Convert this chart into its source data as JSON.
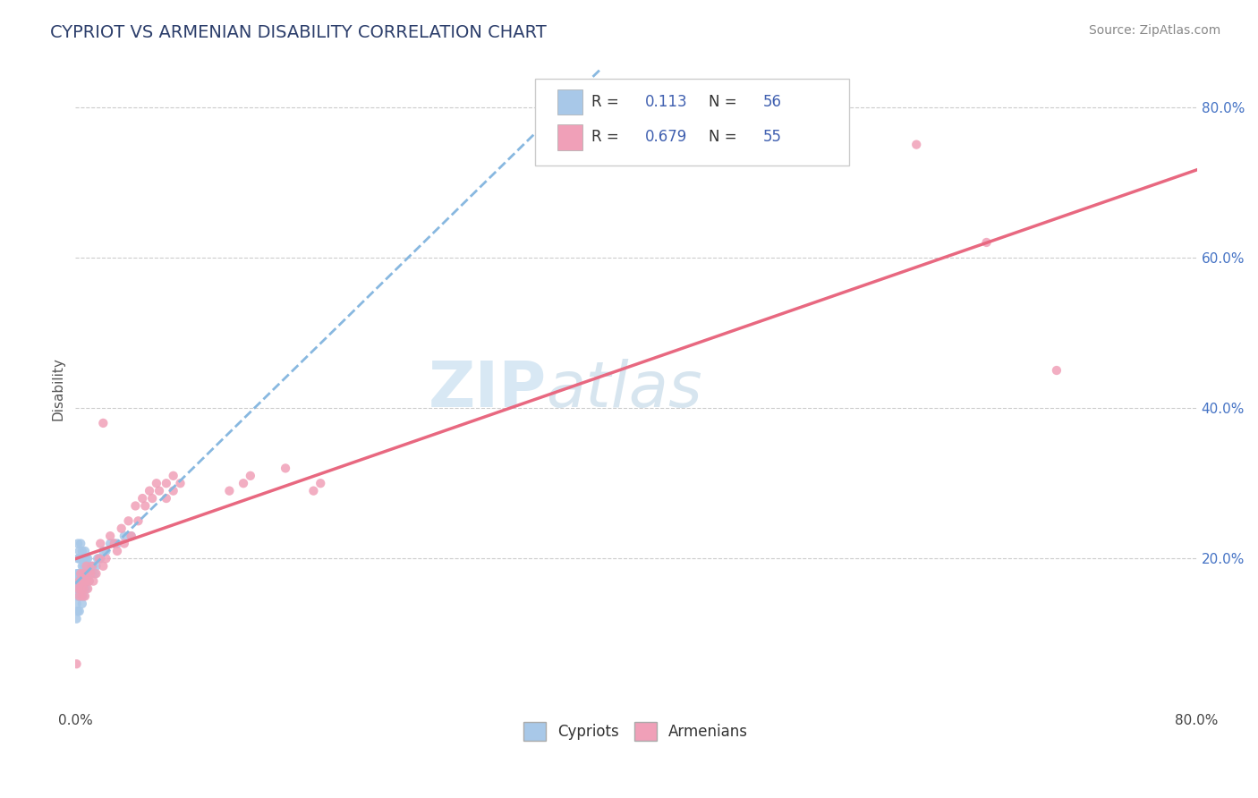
{
  "title": "CYPRIOT VS ARMENIAN DISABILITY CORRELATION CHART",
  "source": "Source: ZipAtlas.com",
  "ylabel_label": "Disability",
  "cypriot_R": 0.113,
  "cypriot_N": 56,
  "armenian_R": 0.679,
  "armenian_N": 55,
  "cypriot_color": "#a8c8e8",
  "armenian_color": "#f0a0b8",
  "cypriot_line_color": "#88b8e0",
  "armenian_line_color": "#e86880",
  "background_color": "#ffffff",
  "grid_color": "#cccccc",
  "title_color": "#2c3e6b",
  "legend_val_color": "#4060b0",
  "legend_label_cypriot": "Cypriots",
  "legend_label_armenian": "Armenians",
  "cypriot_x": [
    0.001,
    0.001,
    0.001,
    0.001,
    0.001,
    0.002,
    0.002,
    0.002,
    0.002,
    0.002,
    0.002,
    0.003,
    0.003,
    0.003,
    0.003,
    0.003,
    0.003,
    0.004,
    0.004,
    0.004,
    0.004,
    0.004,
    0.005,
    0.005,
    0.005,
    0.005,
    0.005,
    0.006,
    0.006,
    0.006,
    0.006,
    0.007,
    0.007,
    0.007,
    0.007,
    0.008,
    0.008,
    0.008,
    0.009,
    0.009,
    0.01,
    0.01,
    0.011,
    0.012,
    0.013,
    0.014,
    0.015,
    0.016,
    0.018,
    0.02,
    0.022,
    0.025,
    0.028,
    0.03,
    0.035,
    0.04
  ],
  "cypriot_y": [
    0.18,
    0.17,
    0.16,
    0.14,
    0.12,
    0.22,
    0.2,
    0.18,
    0.16,
    0.15,
    0.13,
    0.21,
    0.2,
    0.18,
    0.17,
    0.15,
    0.13,
    0.22,
    0.2,
    0.18,
    0.17,
    0.15,
    0.21,
    0.19,
    0.18,
    0.16,
    0.14,
    0.2,
    0.19,
    0.17,
    0.15,
    0.21,
    0.19,
    0.17,
    0.16,
    0.2,
    0.18,
    0.16,
    0.2,
    0.18,
    0.19,
    0.17,
    0.19,
    0.18,
    0.19,
    0.18,
    0.19,
    0.2,
    0.2,
    0.21,
    0.21,
    0.22,
    0.22,
    0.22,
    0.23,
    0.23
  ],
  "armenian_x": [
    0.001,
    0.002,
    0.003,
    0.003,
    0.004,
    0.004,
    0.005,
    0.005,
    0.006,
    0.006,
    0.007,
    0.007,
    0.008,
    0.008,
    0.009,
    0.009,
    0.01,
    0.011,
    0.012,
    0.013,
    0.015,
    0.017,
    0.018,
    0.02,
    0.022,
    0.025,
    0.028,
    0.03,
    0.033,
    0.035,
    0.038,
    0.04,
    0.043,
    0.045,
    0.048,
    0.05,
    0.053,
    0.055,
    0.058,
    0.06,
    0.065,
    0.065,
    0.07,
    0.07,
    0.075,
    0.11,
    0.12,
    0.125,
    0.15,
    0.17,
    0.175,
    0.02,
    0.6,
    0.65,
    0.7
  ],
  "armenian_y": [
    0.06,
    0.16,
    0.17,
    0.15,
    0.18,
    0.16,
    0.17,
    0.15,
    0.18,
    0.16,
    0.17,
    0.15,
    0.19,
    0.17,
    0.18,
    0.16,
    0.17,
    0.18,
    0.19,
    0.17,
    0.18,
    0.2,
    0.22,
    0.19,
    0.2,
    0.23,
    0.22,
    0.21,
    0.24,
    0.22,
    0.25,
    0.23,
    0.27,
    0.25,
    0.28,
    0.27,
    0.29,
    0.28,
    0.3,
    0.29,
    0.3,
    0.28,
    0.31,
    0.29,
    0.3,
    0.29,
    0.3,
    0.31,
    0.32,
    0.29,
    0.3,
    0.38,
    0.75,
    0.62,
    0.45
  ],
  "xlim": [
    0.0,
    0.8
  ],
  "ylim": [
    0.0,
    0.85
  ],
  "xtick_vals": [
    0.0,
    0.8
  ],
  "xtick_labels": [
    "0.0%",
    "80.0%"
  ],
  "ytick_vals": [
    0.2,
    0.4,
    0.6,
    0.8
  ],
  "ytick_labels_right": [
    "20.0%",
    "40.0%",
    "60.0%",
    "80.0%"
  ],
  "grid_ytick_vals": [
    0.2,
    0.4,
    0.6,
    0.8
  ],
  "watermark_text": "ZIPatlas"
}
